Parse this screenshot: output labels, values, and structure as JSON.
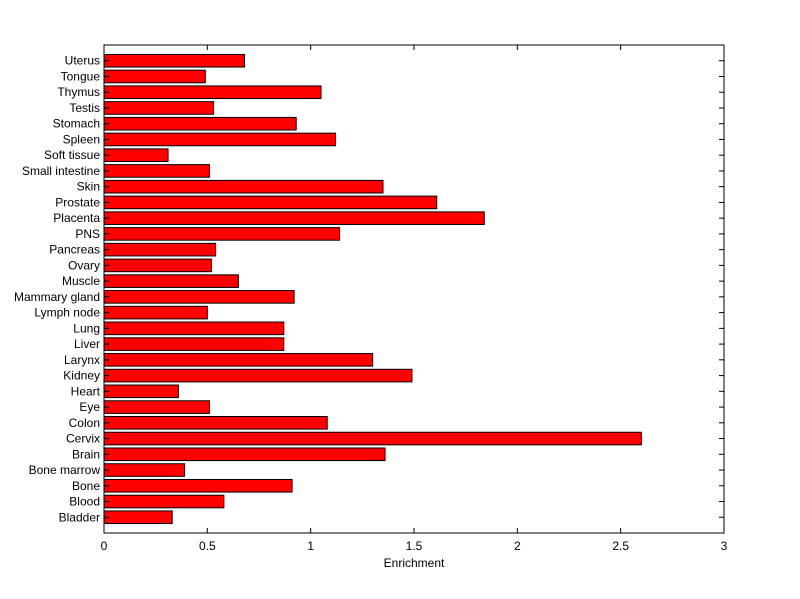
{
  "chart_data": {
    "type": "bar",
    "orientation": "horizontal",
    "title": "",
    "xlabel": "Enrichment",
    "ylabel": "",
    "xlim": [
      0,
      3
    ],
    "xticks": [
      0,
      0.5,
      1,
      1.5,
      2,
      2.5,
      3
    ],
    "xtick_labels": [
      "0",
      "0.5",
      "1",
      "1.5",
      "2",
      "2.5",
      "3"
    ],
    "grid": false,
    "bar_color": "#ff0000",
    "bar_edge_color": "#000000",
    "categories": [
      "Bladder",
      "Blood",
      "Bone",
      "Bone marrow",
      "Brain",
      "Cervix",
      "Colon",
      "Eye",
      "Heart",
      "Kidney",
      "Larynx",
      "Liver",
      "Lung",
      "Lymph node",
      "Mammary gland",
      "Muscle",
      "Ovary",
      "Pancreas",
      "PNS",
      "Placenta",
      "Prostate",
      "Skin",
      "Small intestine",
      "Soft tissue",
      "Spleen",
      "Stomach",
      "Testis",
      "Thymus",
      "Tongue",
      "Uterus"
    ],
    "values": [
      0.33,
      0.58,
      0.91,
      0.39,
      1.36,
      2.6,
      1.08,
      0.51,
      0.36,
      1.49,
      1.3,
      0.87,
      0.87,
      0.5,
      0.92,
      0.65,
      0.52,
      0.54,
      1.14,
      1.84,
      1.61,
      1.35,
      0.51,
      0.31,
      1.12,
      0.93,
      0.53,
      1.05,
      0.49,
      0.68
    ]
  }
}
